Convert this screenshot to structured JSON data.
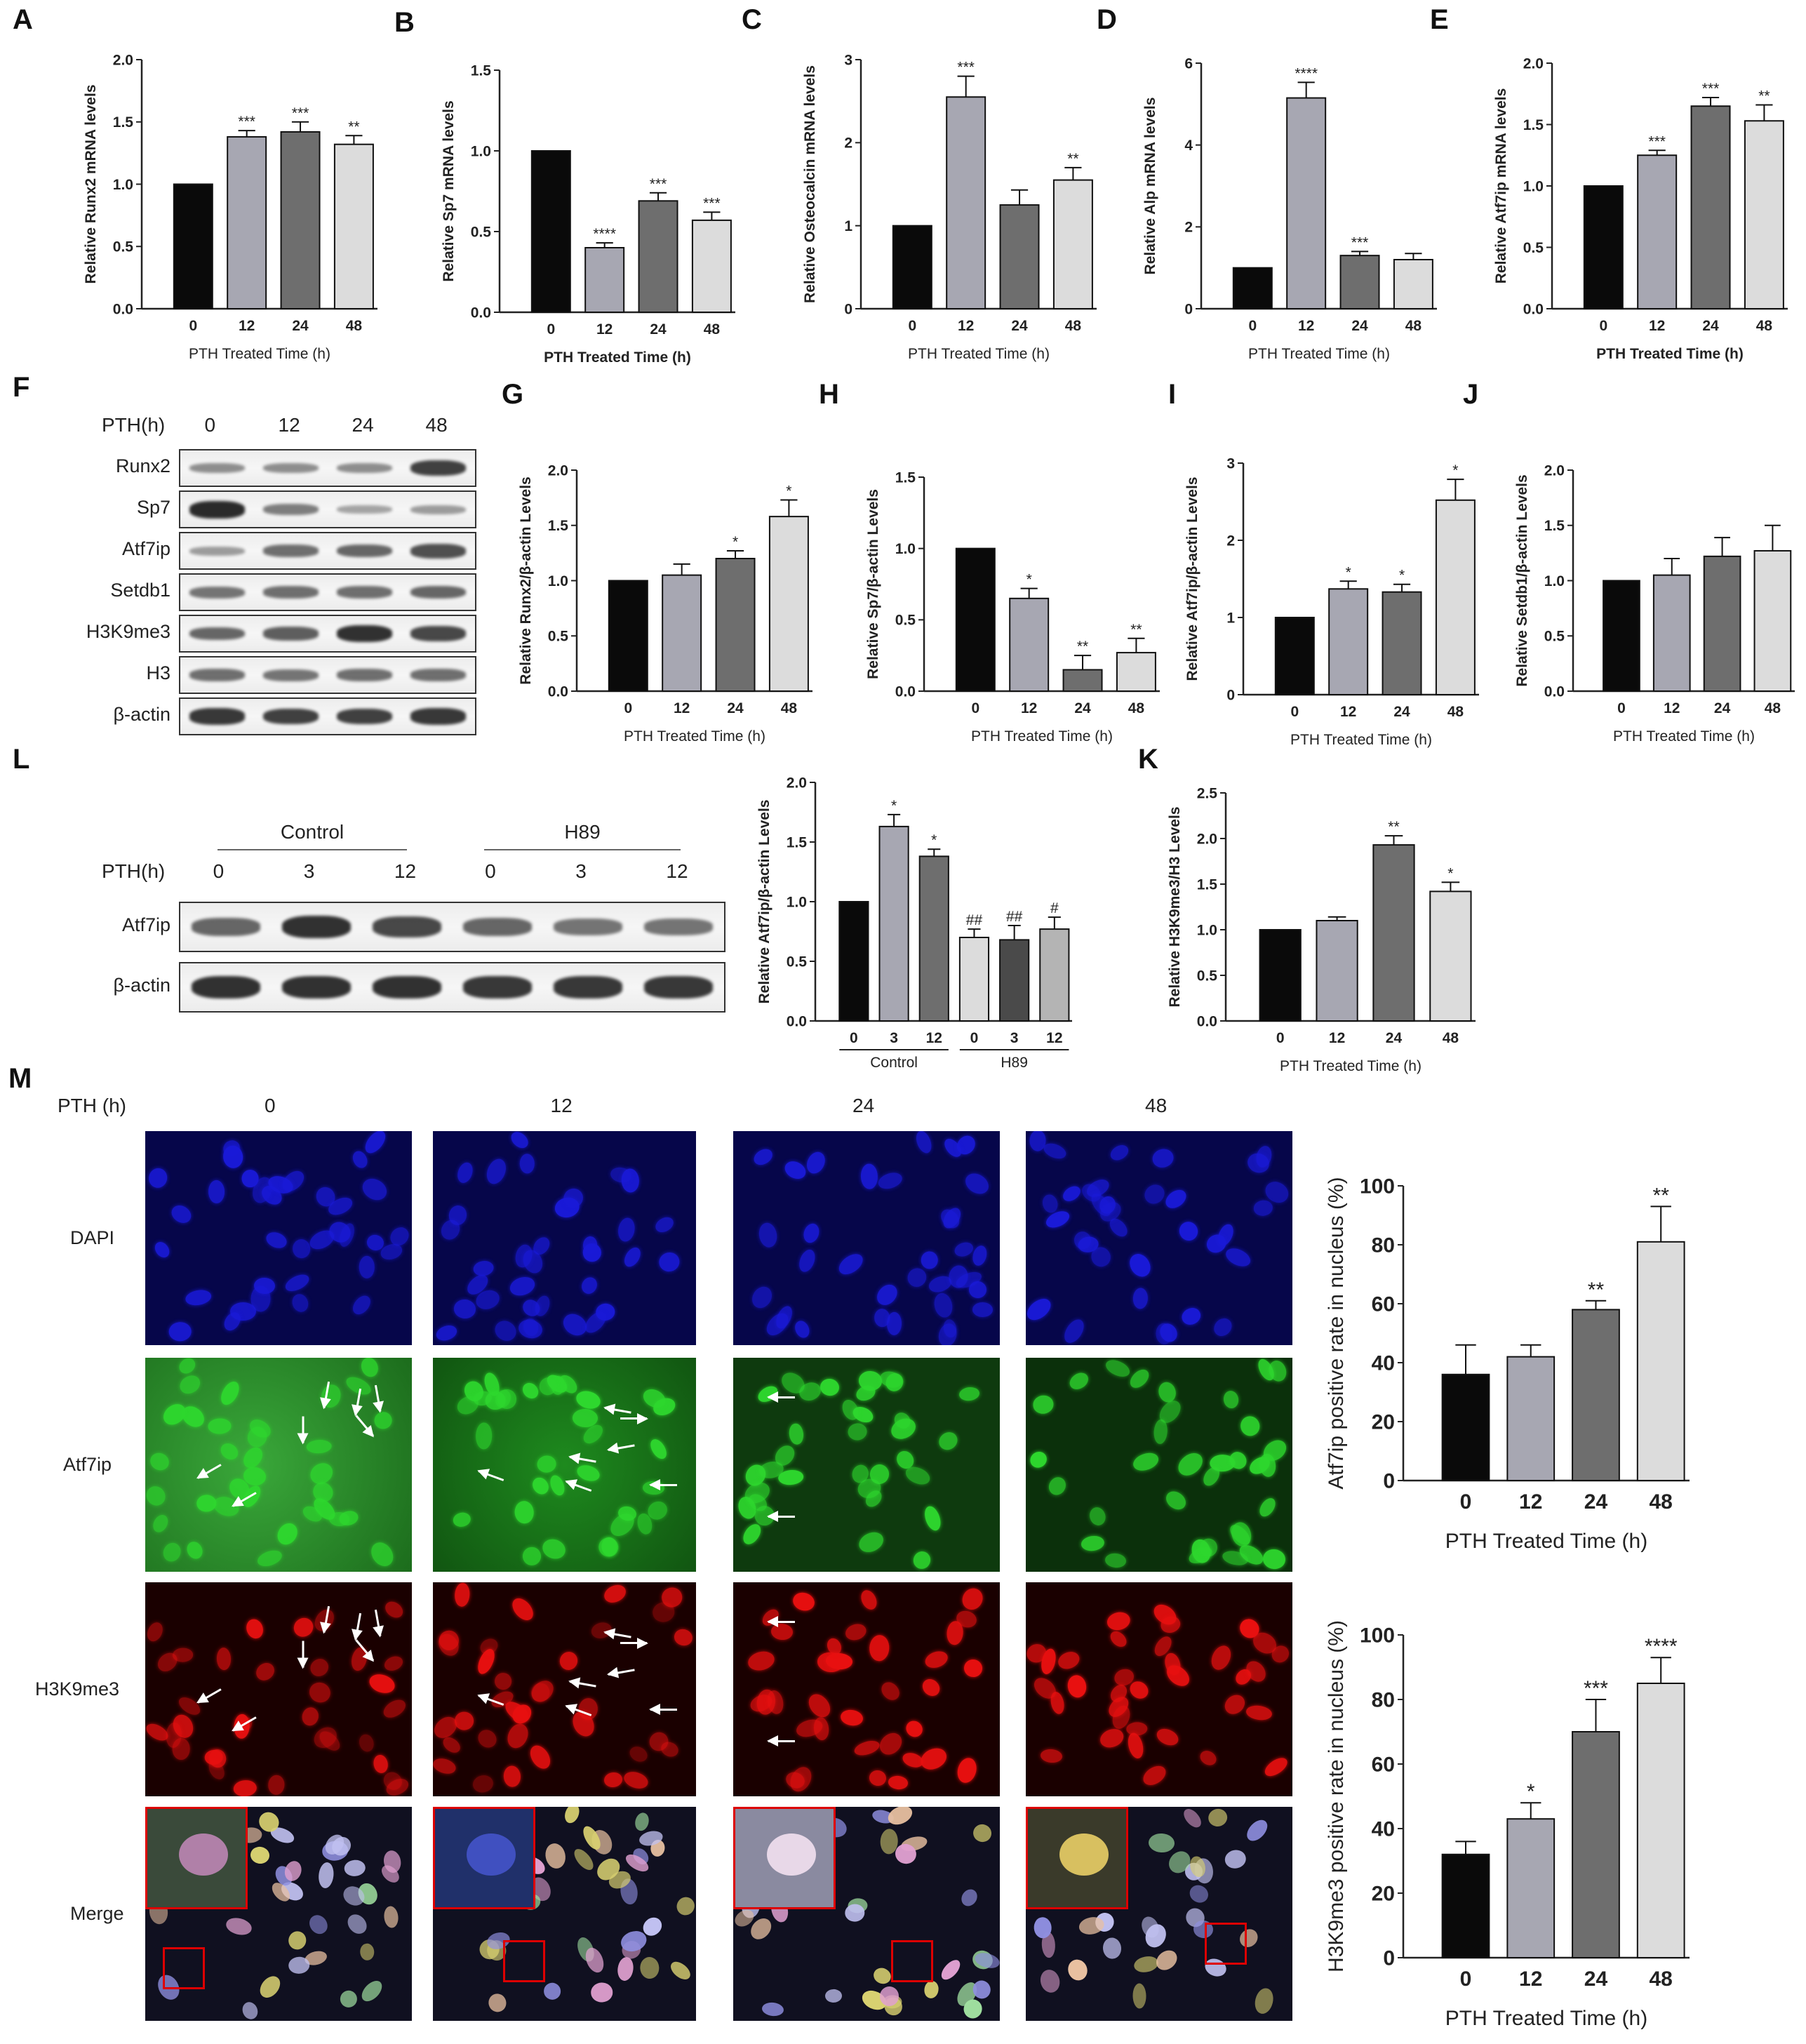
{
  "panel_letters": [
    "A",
    "B",
    "C",
    "D",
    "E",
    "F",
    "G",
    "H",
    "I",
    "J",
    "K",
    "L",
    "M"
  ],
  "chart_data": [
    {
      "id": "A",
      "type": "bar",
      "categories": [
        "0",
        "12",
        "24",
        "48"
      ],
      "values": [
        1.0,
        1.38,
        1.42,
        1.32
      ],
      "errors": [
        0,
        0.05,
        0.08,
        0.07
      ],
      "sig": [
        "",
        "***",
        "***",
        "**"
      ],
      "ylabel": "Relative Runx2 mRNA levels",
      "xlabel": "PTH Treated Time (h)",
      "ylim": [
        0,
        2.0
      ],
      "yticks": [
        "0.0",
        "0.5",
        "1.0",
        "1.5",
        "2.0"
      ],
      "xlabel_bold": false
    },
    {
      "id": "B",
      "type": "bar",
      "categories": [
        "0",
        "12",
        "24",
        "48"
      ],
      "values": [
        1.0,
        0.4,
        0.69,
        0.57
      ],
      "errors": [
        0,
        0.03,
        0.05,
        0.05
      ],
      "sig": [
        "",
        "****",
        "***",
        "***"
      ],
      "ylabel": "Relative Sp7 mRNA levels",
      "xlabel": "PTH Treated Time (h)",
      "ylim": [
        0,
        1.5
      ],
      "yticks": [
        "0.0",
        "0.5",
        "1.0",
        "1.5"
      ],
      "xlabel_bold": true
    },
    {
      "id": "C",
      "type": "bar",
      "categories": [
        "0",
        "12",
        "24",
        "48"
      ],
      "values": [
        1.0,
        2.55,
        1.25,
        1.55
      ],
      "errors": [
        0,
        0.25,
        0.18,
        0.15
      ],
      "sig": [
        "",
        "***",
        "",
        "**"
      ],
      "ylabel": "Relative Osteocalcin mRNA levels",
      "xlabel": "PTH Treated Time (h)",
      "ylim": [
        0,
        3
      ],
      "yticks": [
        "0",
        "1",
        "2",
        "3"
      ],
      "xlabel_bold": false
    },
    {
      "id": "D",
      "type": "bar",
      "categories": [
        "0",
        "12",
        "24",
        "48"
      ],
      "values": [
        1.0,
        5.15,
        1.3,
        1.2
      ],
      "errors": [
        0,
        0.38,
        0.1,
        0.15
      ],
      "sig": [
        "",
        "****",
        "***",
        ""
      ],
      "ylabel": "Relative Alp mRNA levels",
      "xlabel": "PTH Treated Time (h)",
      "ylim": [
        0,
        6
      ],
      "yticks": [
        "0",
        "2",
        "4",
        "6"
      ],
      "xlabel_bold": false
    },
    {
      "id": "E",
      "type": "bar",
      "categories": [
        "0",
        "12",
        "24",
        "48"
      ],
      "values": [
        1.0,
        1.25,
        1.65,
        1.53
      ],
      "errors": [
        0,
        0.04,
        0.07,
        0.13
      ],
      "sig": [
        "",
        "***",
        "***",
        "**"
      ],
      "ylabel": "Relative Atf7ip mRNA levels",
      "xlabel": "PTH Treated Time (h)",
      "ylim": [
        0,
        2.0
      ],
      "yticks": [
        "0.0",
        "0.5",
        "1.0",
        "1.5",
        "2.0"
      ],
      "xlabel_bold": true
    },
    {
      "id": "G",
      "type": "bar",
      "categories": [
        "0",
        "12",
        "24",
        "48"
      ],
      "values": [
        1.0,
        1.05,
        1.2,
        1.58
      ],
      "errors": [
        0,
        0.1,
        0.07,
        0.15
      ],
      "sig": [
        "",
        "",
        "*",
        "*"
      ],
      "ylabel": "Relative Runx2/β-actin Levels",
      "xlabel": "PTH Treated Time (h)",
      "ylim": [
        0,
        2.0
      ],
      "yticks": [
        "0.0",
        "0.5",
        "1.0",
        "1.5",
        "2.0"
      ],
      "xlabel_bold": false
    },
    {
      "id": "H",
      "type": "bar",
      "categories": [
        "0",
        "12",
        "24",
        "48"
      ],
      "values": [
        1.0,
        0.65,
        0.15,
        0.27
      ],
      "errors": [
        0,
        0.07,
        0.1,
        0.1
      ],
      "sig": [
        "",
        "*",
        "**",
        "**"
      ],
      "ylabel": "Relative Sp7/β-actin Levels",
      "xlabel": "PTH Treated Time (h)",
      "ylim": [
        0,
        1.5
      ],
      "yticks": [
        "0.0",
        "0.5",
        "1.0",
        "1.5"
      ],
      "xlabel_bold": false
    },
    {
      "id": "I",
      "type": "bar",
      "categories": [
        "0",
        "12",
        "24",
        "48"
      ],
      "values": [
        1.0,
        1.37,
        1.33,
        2.52
      ],
      "errors": [
        0,
        0.1,
        0.1,
        0.27
      ],
      "sig": [
        "",
        "*",
        "*",
        "*"
      ],
      "ylabel": "Relative Atf7ip/β-actin Levels",
      "xlabel": "PTH Treated Time (h)",
      "ylim": [
        0,
        3
      ],
      "yticks": [
        "0",
        "1",
        "2",
        "3"
      ],
      "xlabel_bold": false
    },
    {
      "id": "J",
      "type": "bar",
      "categories": [
        "0",
        "12",
        "24",
        "48"
      ],
      "values": [
        1.0,
        1.05,
        1.22,
        1.27
      ],
      "errors": [
        0,
        0.15,
        0.17,
        0.23
      ],
      "sig": [
        "",
        "",
        "",
        ""
      ],
      "ylabel": "Relative Setdb1/β-actin Levels",
      "xlabel": "PTH Treated Time (h)",
      "ylim": [
        0,
        2.0
      ],
      "yticks": [
        "0.0",
        "0.5",
        "1.0",
        "1.5",
        "2.0"
      ],
      "xlabel_bold": false
    },
    {
      "id": "L",
      "type": "bar",
      "categories": [
        "0",
        "3",
        "12",
        "0",
        "3",
        "12"
      ],
      "values": [
        1.0,
        1.63,
        1.38,
        0.7,
        0.68,
        0.77
      ],
      "errors": [
        0,
        0.1,
        0.06,
        0.07,
        0.12,
        0.1
      ],
      "sig": [
        "",
        "*",
        "*",
        "##",
        "##",
        "#"
      ],
      "ylabel": "Relative Atf7ip/β-actin Levels",
      "xlabel": "",
      "ylim": [
        0,
        2.0
      ],
      "yticks": [
        "0.0",
        "0.5",
        "1.0",
        "1.5",
        "2.0"
      ],
      "groups": [
        {
          "name": "Control",
          "from": 0,
          "to": 2
        },
        {
          "name": "H89",
          "from": 3,
          "to": 5
        }
      ],
      "xlabel_bold": false
    },
    {
      "id": "K",
      "type": "bar",
      "categories": [
        "0",
        "12",
        "24",
        "48"
      ],
      "values": [
        1.0,
        1.1,
        1.93,
        1.42
      ],
      "errors": [
        0,
        0.04,
        0.1,
        0.1
      ],
      "sig": [
        "",
        "",
        "**",
        "*"
      ],
      "ylabel": "Relative H3K9me3/H3 Levels",
      "xlabel": "PTH Treated Time (h)",
      "ylim": [
        0,
        2.5
      ],
      "yticks": [
        "0.0",
        "0.5",
        "1.0",
        "1.5",
        "2.0",
        "2.5"
      ],
      "xlabel_bold": false
    },
    {
      "id": "M1",
      "type": "bar",
      "categories": [
        "0",
        "12",
        "24",
        "48"
      ],
      "values": [
        36,
        42,
        58,
        81
      ],
      "errors": [
        10,
        4,
        3,
        12
      ],
      "sig": [
        "",
        "",
        "**",
        "**"
      ],
      "ylabel": "Atf7ip positive rate in nucleus (%)",
      "xlabel": "PTH Treated Time (h)",
      "ylim": [
        0,
        100
      ],
      "yticks": [
        "0",
        "20",
        "40",
        "60",
        "80",
        "100"
      ],
      "xlabel_bold": false
    },
    {
      "id": "M2",
      "type": "bar",
      "categories": [
        "0",
        "12",
        "24",
        "48"
      ],
      "values": [
        32,
        43,
        70,
        85
      ],
      "errors": [
        4,
        5,
        10,
        8
      ],
      "sig": [
        "",
        "*",
        "***",
        "****"
      ],
      "ylabel": "H3K9me3 positive rate in nucleus (%)",
      "xlabel": "PTH Treated Time (h)",
      "ylim": [
        0,
        100
      ],
      "yticks": [
        "0",
        "20",
        "40",
        "60",
        "80",
        "100"
      ],
      "xlabel_bold": false
    }
  ],
  "blotF": {
    "header_label": "PTH(h)",
    "lanes": [
      "0",
      "12",
      "24",
      "48"
    ],
    "rows": [
      {
        "name": "Runx2",
        "intensity": [
          0.35,
          0.35,
          0.35,
          0.85
        ]
      },
      {
        "name": "Sp7",
        "intensity": [
          1.0,
          0.45,
          0.2,
          0.25
        ]
      },
      {
        "name": "Atf7ip",
        "intensity": [
          0.25,
          0.55,
          0.6,
          0.75
        ]
      },
      {
        "name": "Setdb1",
        "intensity": [
          0.5,
          0.55,
          0.55,
          0.6
        ]
      },
      {
        "name": "H3K9me3",
        "intensity": [
          0.6,
          0.65,
          0.95,
          0.8
        ]
      },
      {
        "name": "H3",
        "intensity": [
          0.55,
          0.5,
          0.55,
          0.55
        ]
      },
      {
        "name": "β-actin",
        "intensity": [
          0.9,
          0.85,
          0.85,
          0.9
        ]
      }
    ]
  },
  "blotL": {
    "groups": [
      "Control",
      "H89"
    ],
    "header_label": "PTH(h)",
    "lanes": [
      "0",
      "3",
      "12",
      "0",
      "3",
      "12"
    ],
    "rows": [
      {
        "name": "Atf7ip",
        "intensity": [
          0.6,
          0.95,
          0.8,
          0.6,
          0.5,
          0.5
        ]
      },
      {
        "name": "β-actin",
        "intensity": [
          0.95,
          0.95,
          0.95,
          0.9,
          0.9,
          0.9
        ]
      }
    ]
  },
  "micro": {
    "header_label": "PTH (h)",
    "columns": [
      "0",
      "12",
      "24",
      "48"
    ],
    "rows": [
      "DAPI",
      "Atf7ip",
      "H3K9me3",
      "Merge"
    ]
  },
  "colors": {
    "bar_fills": [
      "#0a0a0a",
      "#a7a7b2",
      "#6e6e6e",
      "#dcdcdc",
      "#4a4a4a",
      "#b4b4b4"
    ],
    "dapi": "#1a1ad8",
    "atf7ip": "#2ed82e",
    "h3k9me3": "#e81010",
    "inset_border": "#dd0000"
  }
}
